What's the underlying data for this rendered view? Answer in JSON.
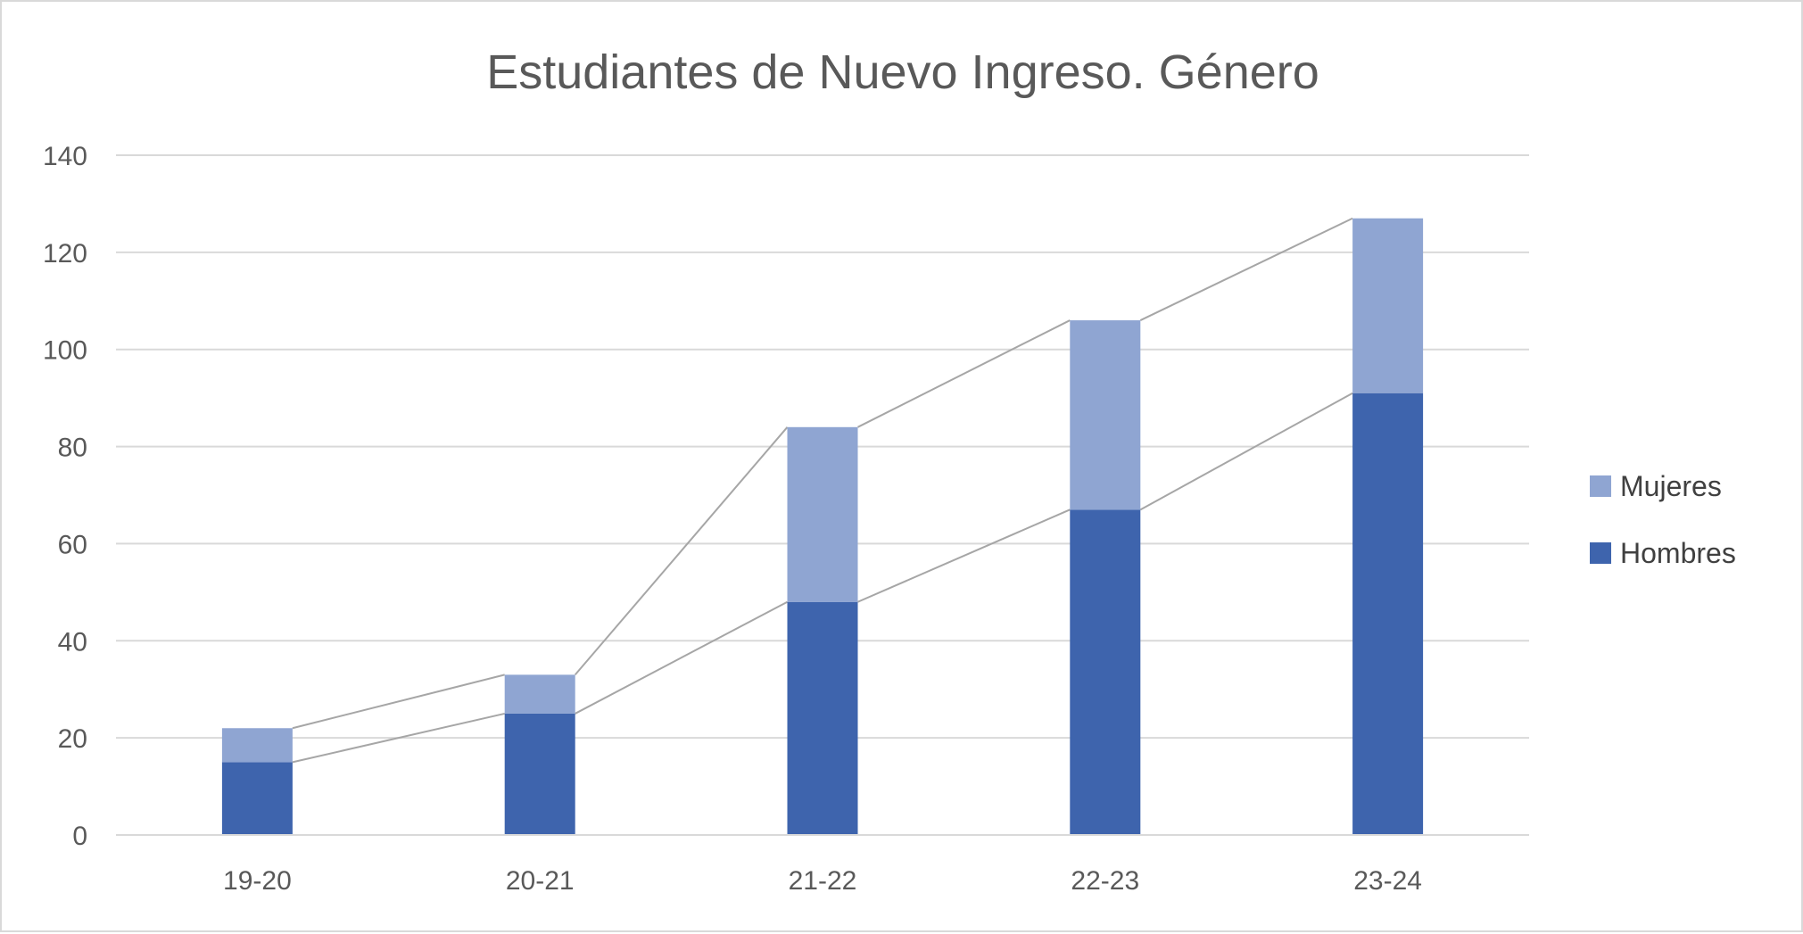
{
  "chart_data": {
    "type": "bar",
    "stacked": true,
    "title": "Estudiantes de Nuevo Ingreso. Género",
    "xlabel": "",
    "ylabel": "",
    "categories": [
      "19-20",
      "20-21",
      "21-22",
      "22-23",
      "23-24"
    ],
    "series": [
      {
        "name": "Hombres",
        "values": [
          15,
          25,
          48,
          67,
          91
        ],
        "color": "#3e64ad"
      },
      {
        "name": "Mujeres",
        "values": [
          7,
          8,
          36,
          39,
          36
        ],
        "color": "#8fa5d2"
      }
    ],
    "ylim": [
      0,
      140
    ],
    "yticks": [
      "0",
      "20",
      "40",
      "60",
      "80",
      "100",
      "120",
      "140"
    ],
    "grid": true,
    "series_lines": true,
    "legend_position": "right"
  }
}
